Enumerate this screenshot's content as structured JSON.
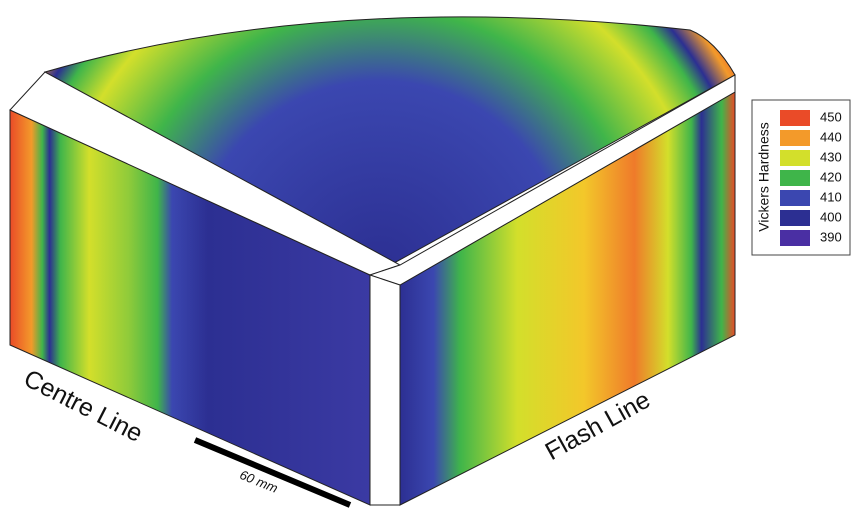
{
  "labels": {
    "centre_line": "Centre Line",
    "flash_line": "Flash Line",
    "scale_bar": "60 mm"
  },
  "legend": {
    "title": "Vickers Hardness",
    "levels": [
      {
        "value": 450,
        "color": "#ea4b28"
      },
      {
        "value": 440,
        "color": "#f39a2a"
      },
      {
        "value": 430,
        "color": "#d3df2b"
      },
      {
        "value": 420,
        "color": "#3fb54a"
      },
      {
        "value": 410,
        "color": "#3b47b0"
      },
      {
        "value": 400,
        "color": "#2c2f92"
      },
      {
        "value": 390,
        "color": "#4a2fa3"
      }
    ]
  }
}
